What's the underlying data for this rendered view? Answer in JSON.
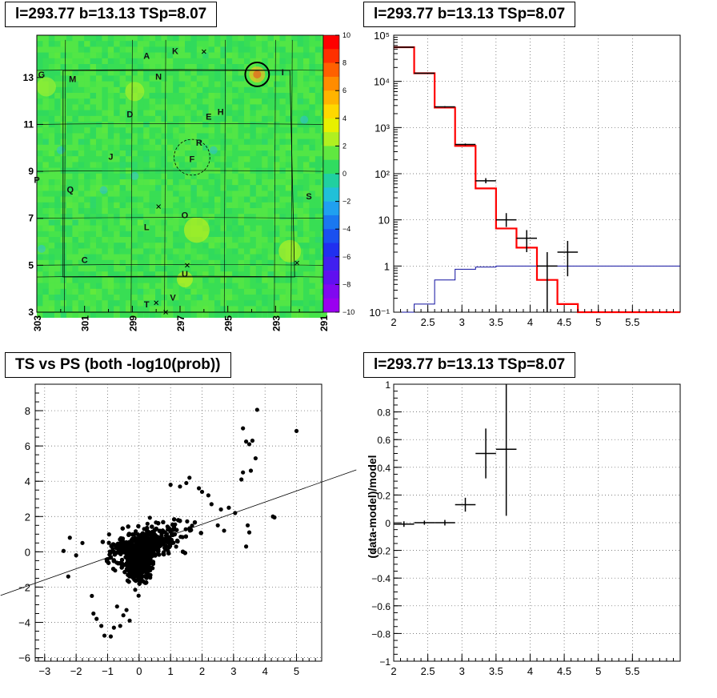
{
  "pad1": {
    "title": "l=293.77 b=13.13 TSp=8.07",
    "chart_data": {
      "type": "heatmap",
      "x_ticks": [
        "303",
        "301",
        "299",
        "297",
        "295",
        "293",
        "291"
      ],
      "x_tick_values": [
        303,
        301,
        299,
        297,
        295,
        293,
        291
      ],
      "xlim": [
        303,
        291
      ],
      "y_ticks": [
        "3",
        "5",
        "7",
        "9",
        "11",
        "13"
      ],
      "y_tick_values": [
        3,
        5,
        7,
        9,
        11,
        13
      ],
      "ylim": [
        3,
        14.8
      ],
      "z_ticks": [
        "10",
        "8",
        "6",
        "4",
        "2",
        "0",
        "−2",
        "−4",
        "−6",
        "−8",
        "−10"
      ],
      "zlim": [
        -10,
        10
      ],
      "source_labels": [
        {
          "t": "A",
          "l": 298.4,
          "b": 13.9
        },
        {
          "t": "K",
          "l": 297.2,
          "b": 14.1
        },
        {
          "t": "G",
          "l": 302.8,
          "b": 13.1
        },
        {
          "t": "M",
          "l": 301.5,
          "b": 12.9
        },
        {
          "t": "N",
          "l": 297.9,
          "b": 13.0
        },
        {
          "t": "I",
          "l": 292.7,
          "b": 13.2
        },
        {
          "t": "D",
          "l": 299.1,
          "b": 11.4
        },
        {
          "t": "E",
          "l": 295.8,
          "b": 11.3
        },
        {
          "t": "H",
          "l": 295.3,
          "b": 11.5
        },
        {
          "t": "R",
          "l": 296.2,
          "b": 10.2
        },
        {
          "t": "F",
          "l": 296.5,
          "b": 9.5
        },
        {
          "t": "J",
          "l": 299.9,
          "b": 9.6
        },
        {
          "t": "P",
          "l": 303.0,
          "b": 8.6
        },
        {
          "t": "Q",
          "l": 301.6,
          "b": 8.2
        },
        {
          "t": "S",
          "l": 291.6,
          "b": 7.9
        },
        {
          "t": "O",
          "l": 296.8,
          "b": 7.1
        },
        {
          "t": "L",
          "l": 298.4,
          "b": 6.6
        },
        {
          "t": "C",
          "l": 301.0,
          "b": 5.2
        },
        {
          "t": "U",
          "l": 296.8,
          "b": 4.6
        },
        {
          "t": "V",
          "l": 297.3,
          "b": 3.6
        },
        {
          "t": "T",
          "l": 298.4,
          "b": 3.3
        }
      ],
      "circles": [
        {
          "l": 293.77,
          "b": 13.13,
          "r": 0.5
        },
        {
          "l": 296.5,
          "b": 9.6,
          "r": 0.75
        }
      ],
      "crosses": [
        {
          "l": 296.0,
          "b": 14.1
        },
        {
          "l": 297.9,
          "b": 7.5
        },
        {
          "l": 292.1,
          "b": 5.1
        },
        {
          "l": 296.7,
          "b": 5.0
        },
        {
          "l": 298.0,
          "b": 3.4
        },
        {
          "l": 297.6,
          "b": 3.0
        }
      ],
      "grid_lines_l": [
        301.8,
        299.0,
        297.6,
        295.1,
        293.0,
        292.3
      ],
      "grid_lines_b": [
        13.3,
        11.0,
        9.0,
        7.0,
        5.0,
        4.5
      ]
    }
  },
  "pad2": {
    "title": "l=293.77 b=13.13 TSp=8.07",
    "chart_data": {
      "type": "line",
      "yscale": "log",
      "xlim": [
        2,
        6.2
      ],
      "ylim": [
        0.1,
        100000
      ],
      "x_ticks": [
        "2",
        "2.5",
        "3",
        "3.5",
        "4",
        "4.5",
        "5",
        "5.5"
      ],
      "x_tick_values": [
        2,
        2.5,
        3,
        3.5,
        4,
        4.5,
        5,
        5.5
      ],
      "y_ticks": [
        "10⁻¹",
        "1",
        "10",
        "10²",
        "10³",
        "10⁴",
        "10⁵"
      ],
      "y_tick_values": [
        0.1,
        1,
        10,
        100,
        1000,
        10000,
        100000
      ],
      "bin_edges": [
        2,
        2.3,
        2.6,
        2.9,
        3.2,
        3.5,
        3.8,
        4.1,
        4.4,
        4.7,
        5.0,
        5.3,
        5.6,
        5.9,
        6.2
      ],
      "model_red": [
        55000,
        15000,
        2700,
        400,
        48,
        6.5,
        2.5,
        0.5,
        0.15,
        0.1,
        0.1,
        0.1,
        0.1,
        0.1
      ],
      "model_blue": [
        0.1,
        0.15,
        0.5,
        0.85,
        0.95,
        1,
        1,
        1,
        1,
        1,
        1,
        1,
        1,
        1
      ],
      "data_points": [
        {
          "x": 2.15,
          "y": 55000,
          "xerr": 0.15,
          "lo": 54000,
          "hi": 56000
        },
        {
          "x": 2.45,
          "y": 15000,
          "xerr": 0.15,
          "lo": 14700,
          "hi": 15300
        },
        {
          "x": 2.75,
          "y": 2800,
          "xerr": 0.15,
          "lo": 2700,
          "hi": 2900
        },
        {
          "x": 3.05,
          "y": 430,
          "xerr": 0.15,
          "lo": 410,
          "hi": 450
        },
        {
          "x": 3.35,
          "y": 70,
          "xerr": 0.15,
          "lo": 62,
          "hi": 80
        },
        {
          "x": 3.65,
          "y": 10,
          "xerr": 0.15,
          "lo": 7,
          "hi": 14
        },
        {
          "x": 3.95,
          "y": 4,
          "xerr": 0.15,
          "lo": 2,
          "hi": 6
        },
        {
          "x": 4.25,
          "y": 1,
          "xerr": 0.15,
          "lo": 0.1,
          "hi": 2
        },
        {
          "x": 4.55,
          "y": 2,
          "xerr": 0.15,
          "lo": 0.6,
          "hi": 3.5
        }
      ]
    }
  },
  "pad3": {
    "title": "TS vs PS (both -log10(prob))",
    "chart_data": {
      "type": "scatter",
      "xlim": [
        -3.3,
        5.8
      ],
      "ylim": [
        -6.2,
        9.5
      ],
      "x_ticks": [
        "−3",
        "−2",
        "−1",
        "0",
        "1",
        "2",
        "3",
        "4",
        "5"
      ],
      "x_tick_values": [
        -3,
        -2,
        -1,
        0,
        1,
        2,
        3,
        4,
        5
      ],
      "y_ticks": [
        "−6",
        "−4",
        "−2",
        "0",
        "2",
        "4",
        "6",
        "8"
      ],
      "y_tick_values": [
        -6,
        -4,
        -2,
        0,
        2,
        4,
        6,
        8
      ],
      "fit_line": {
        "slope": 1.0,
        "intercept": 0.3
      },
      "outliers": [
        [
          3.75,
          8.05
        ],
        [
          3.3,
          7.0
        ],
        [
          3.4,
          6.25
        ],
        [
          3.6,
          6.3
        ],
        [
          3.5,
          6.1
        ],
        [
          5.0,
          6.85
        ],
        [
          3.7,
          5.3
        ],
        [
          3.55,
          4.6
        ],
        [
          3.25,
          4.1
        ],
        [
          3.3,
          4.5
        ],
        [
          4.3,
          1.95
        ],
        [
          4.25,
          2.0
        ],
        [
          3.45,
          1.5
        ],
        [
          3.5,
          1.1
        ],
        [
          3.4,
          0.3
        ],
        [
          2.85,
          2.5
        ],
        [
          3.05,
          2.2
        ],
        [
          1.6,
          4.2
        ],
        [
          2.0,
          3.4
        ],
        [
          1.9,
          3.6
        ],
        [
          2.2,
          3.2
        ],
        [
          -2.4,
          0.05
        ],
        [
          -2.2,
          0.8
        ],
        [
          -1.8,
          0.5
        ],
        [
          -2.0,
          -0.2
        ],
        [
          -2.25,
          -1.4
        ],
        [
          -1.45,
          -3.5
        ],
        [
          -1.35,
          -3.8
        ],
        [
          -1.1,
          -4.75
        ],
        [
          -0.9,
          -4.8
        ],
        [
          -0.8,
          -4.3
        ],
        [
          -0.6,
          -4.2
        ],
        [
          -1.2,
          -4.2
        ],
        [
          -0.3,
          -3.9
        ],
        [
          -0.5,
          -3.6
        ],
        [
          -0.4,
          -3.3
        ],
        [
          -0.7,
          -3.1
        ],
        [
          -1.5,
          -2.5
        ],
        [
          2.3,
          2.7
        ],
        [
          2.6,
          2.4
        ],
        [
          2.5,
          1.5
        ],
        [
          2.7,
          1.2
        ],
        [
          1.0,
          3.8
        ],
        [
          1.3,
          3.7
        ],
        [
          1.5,
          3.9
        ]
      ]
    }
  },
  "pad4": {
    "title": "l=293.77 b=13.13 TSp=8.07",
    "chart_data": {
      "type": "scatter",
      "xlim": [
        2,
        6.2
      ],
      "ylim": [
        -1,
        1
      ],
      "ylabel": "(data-model)/model",
      "x_ticks": [
        "2",
        "2.5",
        "3",
        "3.5",
        "4",
        "4.5",
        "5",
        "5.5"
      ],
      "x_tick_values": [
        2,
        2.5,
        3,
        3.5,
        4,
        4.5,
        5,
        5.5
      ],
      "y_ticks": [
        "−1",
        "−0.8",
        "−0.6",
        "−0.4",
        "−0.2",
        "0",
        "0.2",
        "0.4",
        "0.6",
        "0.8",
        "1"
      ],
      "y_tick_values": [
        -1,
        -0.8,
        -0.6,
        -0.4,
        -0.2,
        0,
        0.2,
        0.4,
        0.6,
        0.8,
        1
      ],
      "data_points": [
        {
          "x": 2.15,
          "y": -0.01,
          "xerr": 0.15,
          "lo": -0.03,
          "hi": 0.01
        },
        {
          "x": 2.45,
          "y": 0.0,
          "xerr": 0.15,
          "lo": -0.015,
          "hi": 0.015
        },
        {
          "x": 2.75,
          "y": 0.0,
          "xerr": 0.15,
          "lo": -0.02,
          "hi": 0.02
        },
        {
          "x": 3.05,
          "y": 0.13,
          "xerr": 0.15,
          "lo": 0.08,
          "hi": 0.18
        },
        {
          "x": 3.35,
          "y": 0.5,
          "xerr": 0.15,
          "lo": 0.32,
          "hi": 0.68
        },
        {
          "x": 3.65,
          "y": 0.53,
          "xerr": 0.15,
          "lo": 0.05,
          "hi": 1.0
        }
      ]
    }
  }
}
